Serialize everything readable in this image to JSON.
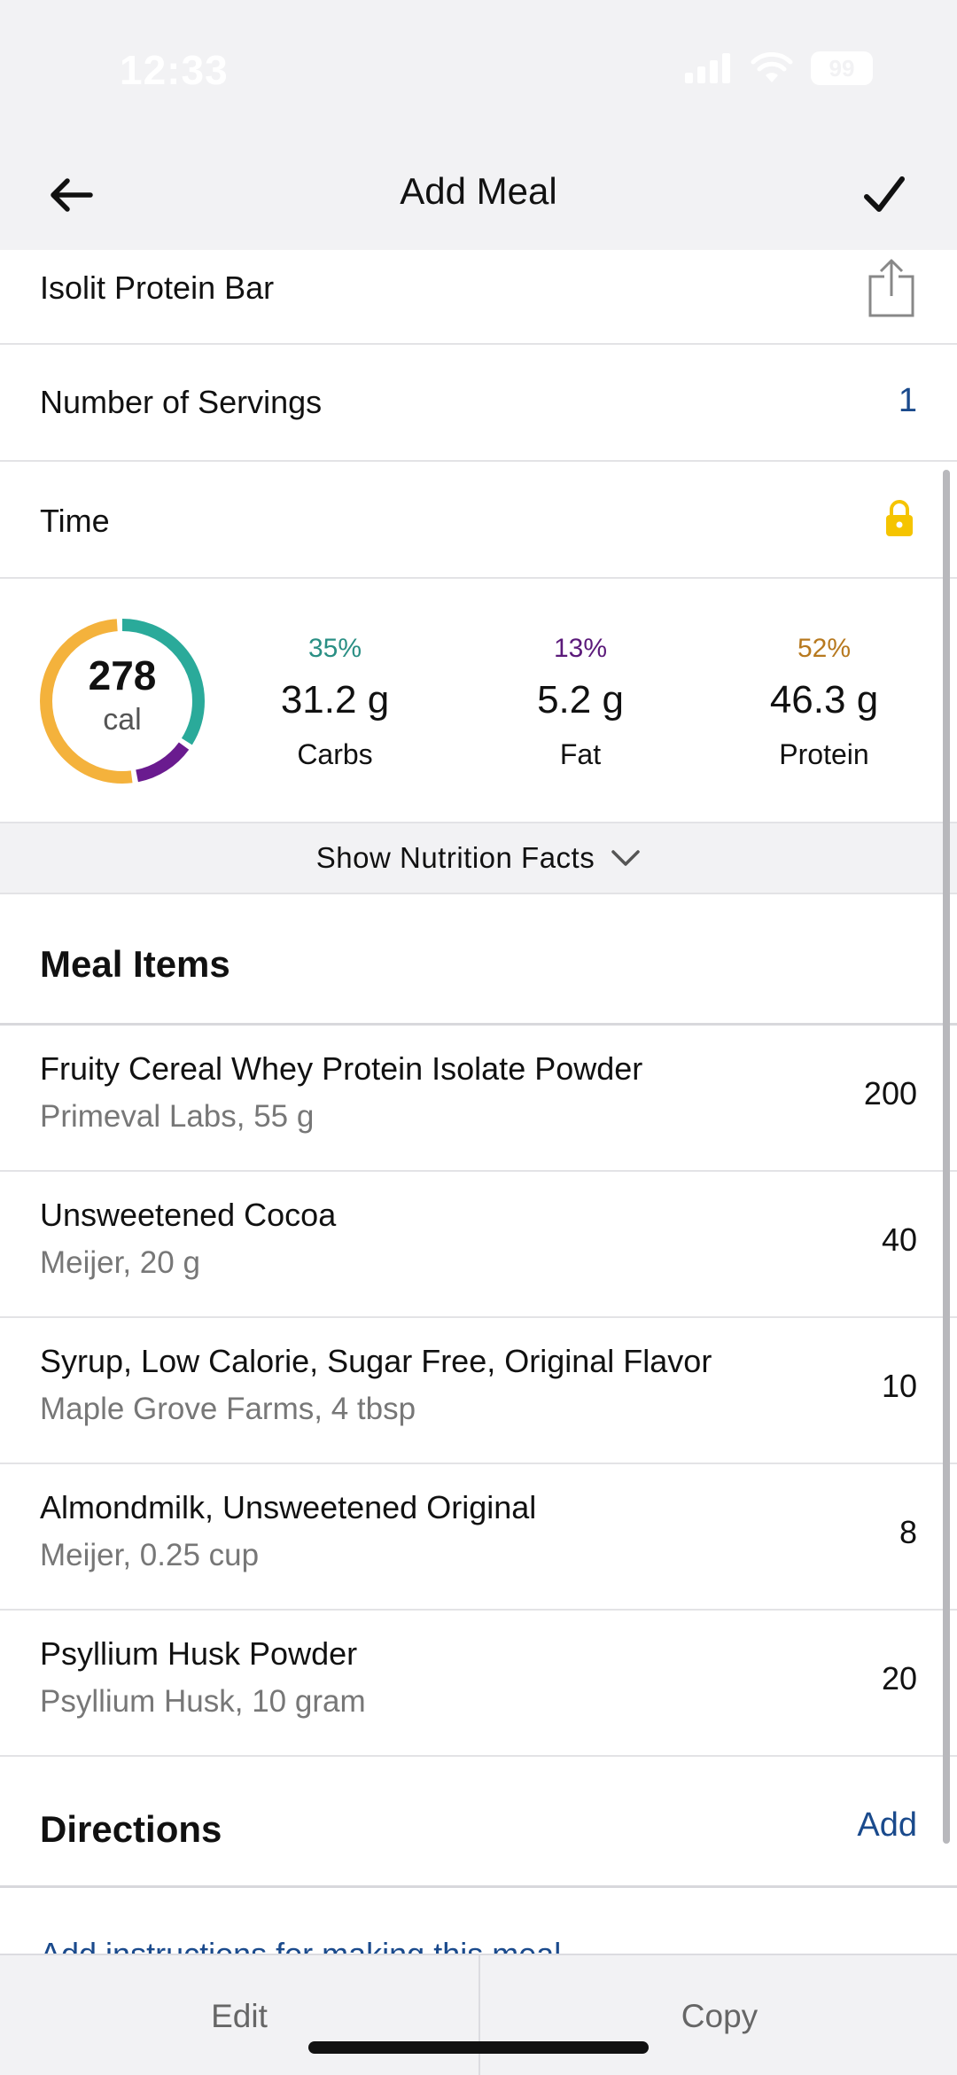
{
  "status_bar": {
    "time": "12:33",
    "battery": "99"
  },
  "nav": {
    "title": "Add Meal",
    "back_icon": "arrow-left-icon",
    "confirm_icon": "checkmark-icon"
  },
  "meal": {
    "name": "Isolit Protein Bar",
    "servings_label": "Number of Servings",
    "servings_value": "1",
    "time_label": "Time"
  },
  "summary": {
    "calories": "278",
    "calories_unit": "cal",
    "macros": [
      {
        "pct": "35%",
        "value": "31.2 g",
        "name": "Carbs",
        "color": "#2aaa9a",
        "fraction": 0.35
      },
      {
        "pct": "13%",
        "value": "5.2 g",
        "name": "Fat",
        "color": "#6a1b8f",
        "fraction": 0.13
      },
      {
        "pct": "52%",
        "value": "46.3 g",
        "name": "Protein",
        "color": "#f4b23c",
        "fraction": 0.52
      }
    ]
  },
  "nutrition_toggle": "Show Nutrition Facts",
  "meal_items_title": "Meal Items",
  "meal_items": [
    {
      "name": "Fruity Cereal Whey Protein Isolate Powder",
      "detail": "Primeval Labs, 55 g",
      "calories": "200"
    },
    {
      "name": "Unsweetened Cocoa",
      "detail": "Meijer, 20 g",
      "calories": "40"
    },
    {
      "name": "Syrup, Low Calorie, Sugar Free, Original Flavor",
      "detail": "Maple Grove Farms, 4 tbsp",
      "calories": "10"
    },
    {
      "name": "Almondmilk, Unsweetened Original",
      "detail": "Meijer, 0.25 cup",
      "calories": "8"
    },
    {
      "name": "Psyllium Husk Powder",
      "detail": "Psyllium Husk, 10 gram",
      "calories": "20"
    }
  ],
  "directions": {
    "title": "Directions",
    "add_label": "Add",
    "instructions_link": "Add instructions for making this meal"
  },
  "bottom_bar": {
    "edit_label": "Edit",
    "copy_label": "Copy"
  },
  "colors": {
    "accent_blue": "#1a4a8c",
    "lock_yellow": "#f5c400"
  }
}
